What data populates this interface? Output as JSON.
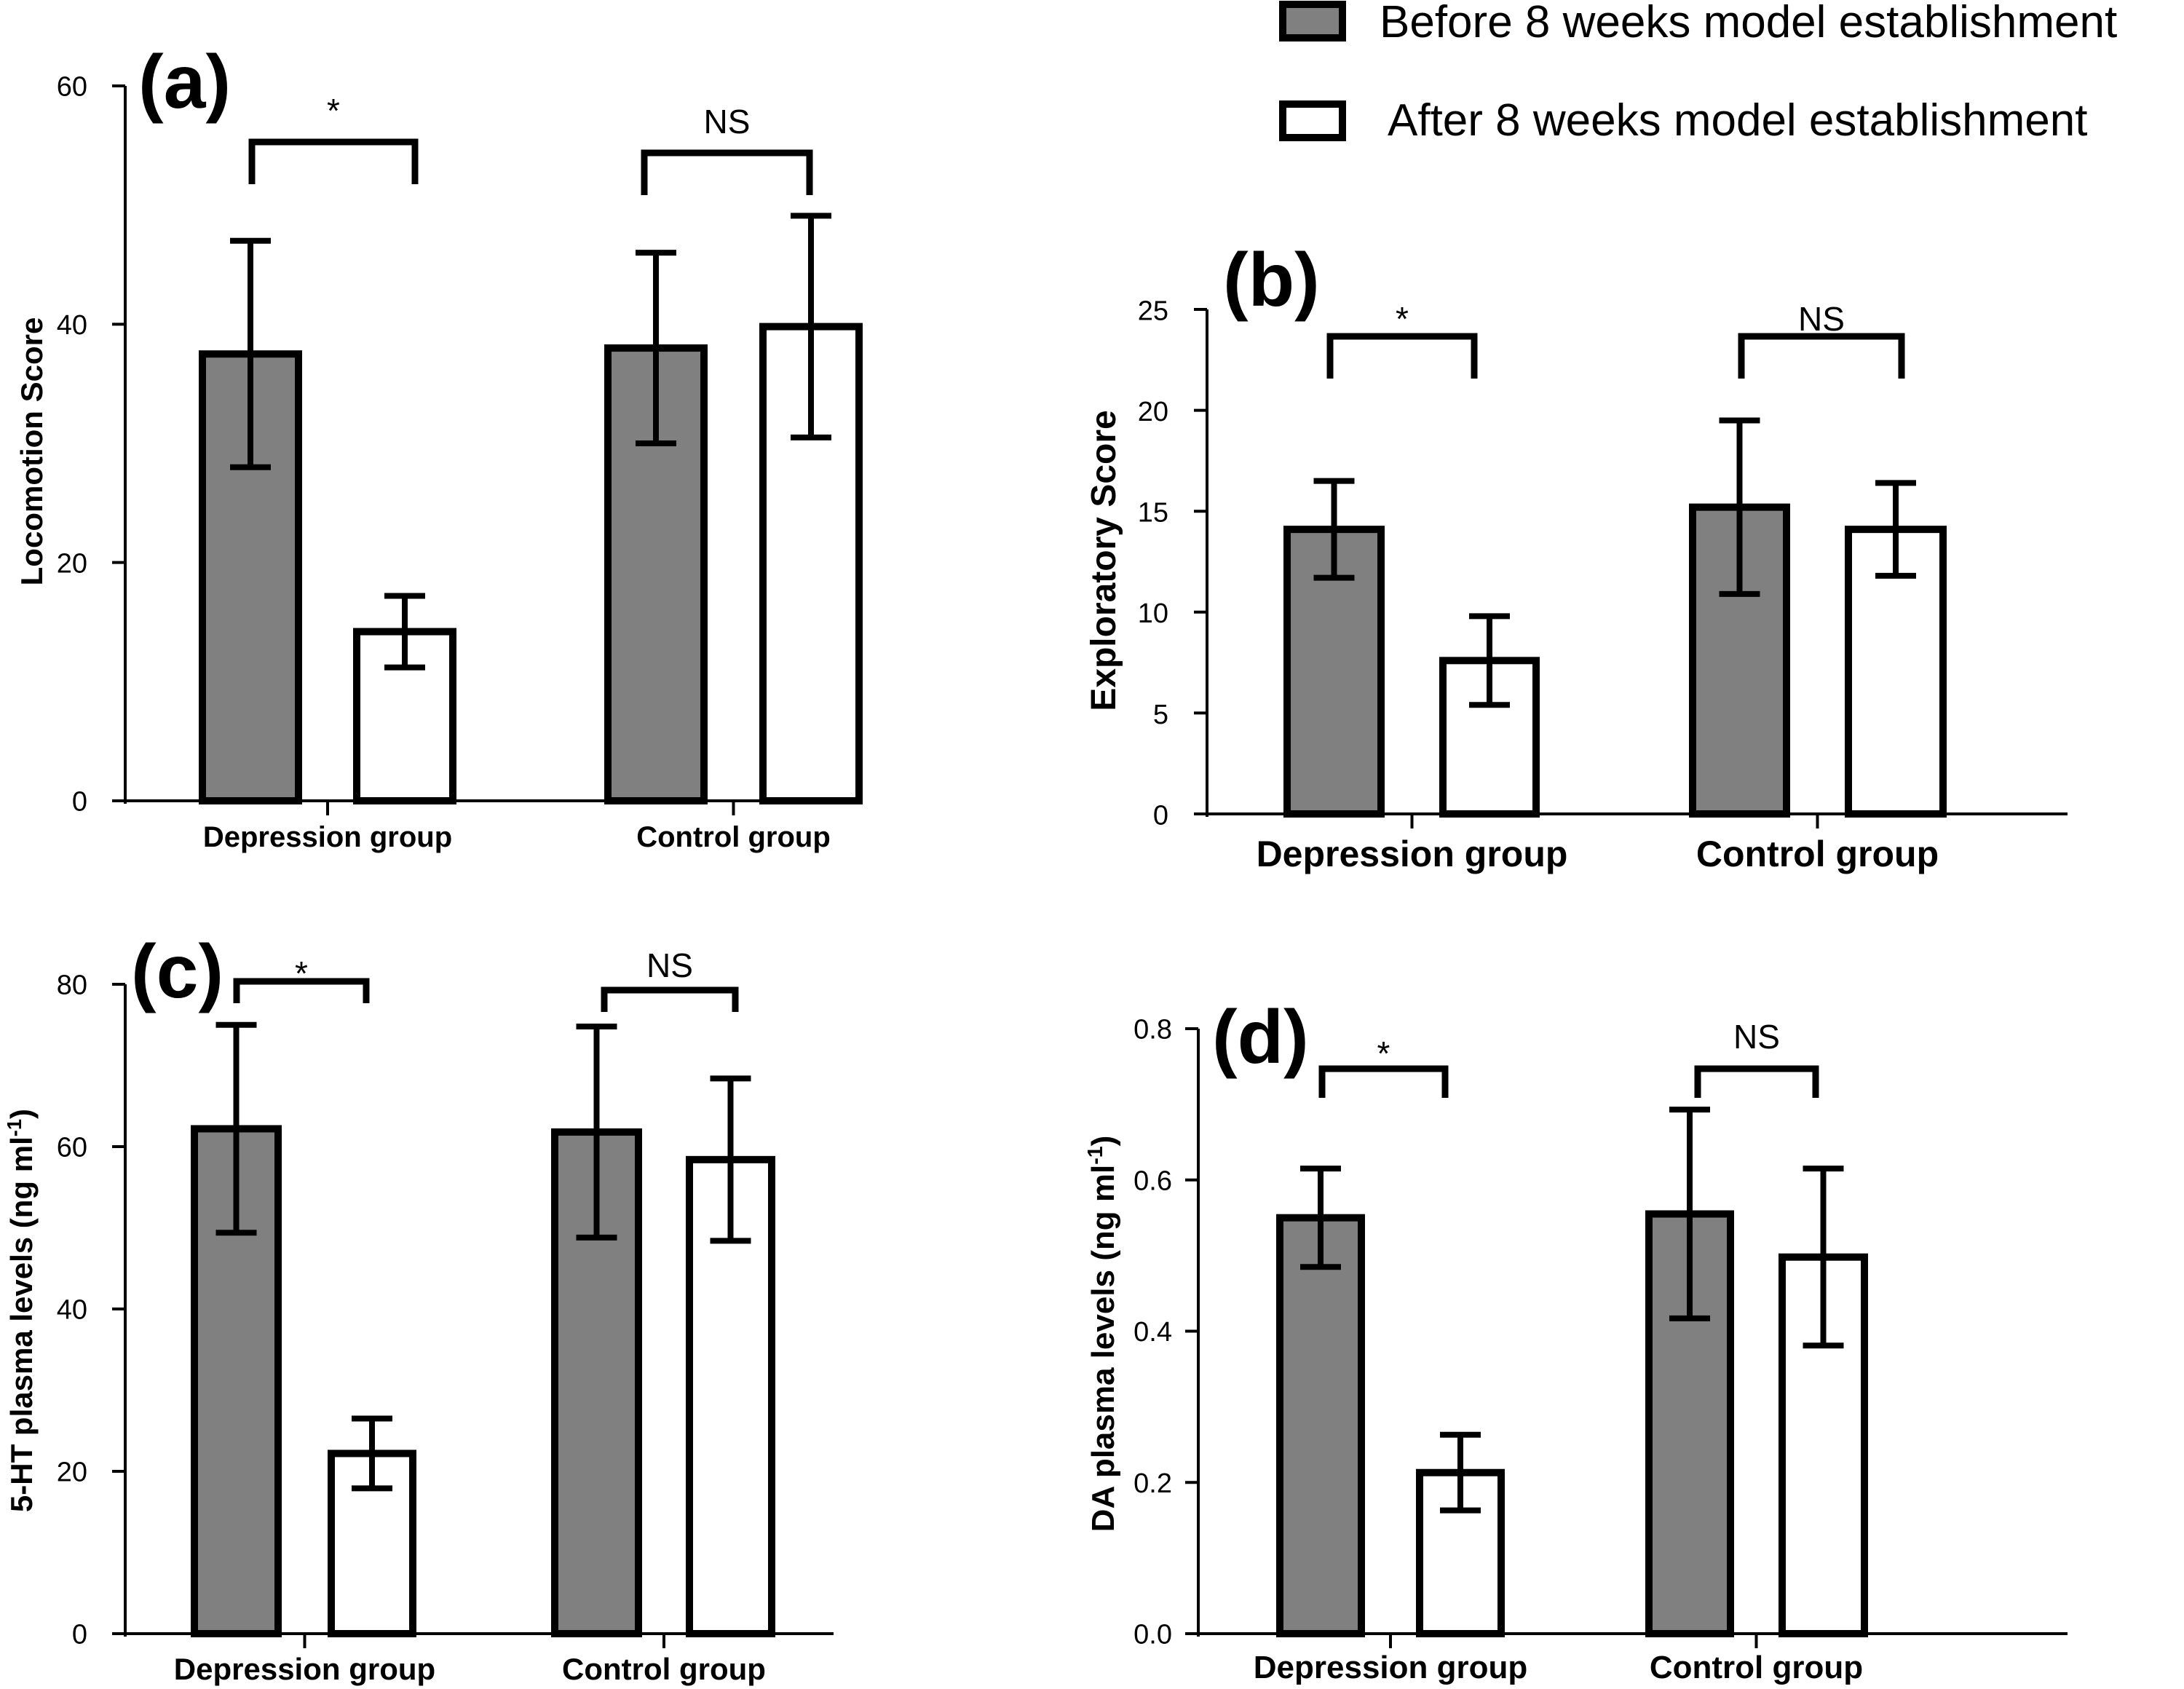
{
  "legend": {
    "items": [
      {
        "label": "Before 8 weeks model establishment",
        "color": "#808080"
      },
      {
        "label": "After 8 weeks model establishment",
        "color": "#ffffff"
      }
    ]
  },
  "colors": {
    "before": "#808080",
    "after": "#ffffff",
    "stroke": "#000000"
  },
  "chart_data": [
    {
      "type": "bar",
      "panel": "(a)",
      "ylabel": "Locomotion Score",
      "ylim": [
        0,
        60
      ],
      "yticks": [
        0,
        20,
        40,
        60
      ],
      "categories": [
        "Depression group",
        "Control group"
      ],
      "series": [
        {
          "name": "Before 8 weeks model establishment",
          "values": [
            37.5,
            38.0
          ],
          "errors": [
            9.5,
            8.0
          ]
        },
        {
          "name": "After 8 weeks model establishment",
          "values": [
            14.2,
            39.8
          ],
          "errors": [
            3.0,
            9.3
          ]
        }
      ],
      "significance": [
        "*",
        "NS"
      ]
    },
    {
      "type": "bar",
      "panel": "(b)",
      "ylabel": "Exploratory Score",
      "ylim": [
        0,
        25
      ],
      "yticks": [
        0,
        5,
        10,
        15,
        20,
        25
      ],
      "categories": [
        "Depression group",
        "Control group"
      ],
      "series": [
        {
          "name": "Before 8 weeks model establishment",
          "values": [
            14.1,
            15.2
          ],
          "errors": [
            2.4,
            4.3
          ]
        },
        {
          "name": "After 8 weeks model establishment",
          "values": [
            7.6,
            14.1
          ],
          "errors": [
            2.2,
            2.3
          ]
        }
      ],
      "significance": [
        "*",
        "NS"
      ]
    },
    {
      "type": "bar",
      "panel": "(c)",
      "ylabel": "5-HT plasma levels (ng ml",
      "ylabel_sup": "-1",
      "ylabel_end": ")",
      "ylim": [
        0,
        80
      ],
      "yticks": [
        0,
        20,
        40,
        60,
        80
      ],
      "categories": [
        "Depression group",
        "Control group"
      ],
      "series": [
        {
          "name": "Before 8 weeks model establishment",
          "values": [
            62.2,
            61.8
          ],
          "errors": [
            12.8,
            13.0
          ]
        },
        {
          "name": "After 8 weeks model establishment",
          "values": [
            22.2,
            58.4
          ],
          "errors": [
            4.3,
            10.0
          ]
        }
      ],
      "significance": [
        "*",
        "NS"
      ]
    },
    {
      "type": "bar",
      "panel": "(d)",
      "ylabel": "DA plasma levels (ng ml",
      "ylabel_sup": "-1",
      "ylabel_end": ")",
      "ylim": [
        0,
        0.8
      ],
      "yticks": [
        "0.0",
        "0.2",
        "0.4",
        "0.6",
        "0.8"
      ],
      "categories": [
        "Depression group",
        "Control group"
      ],
      "series": [
        {
          "name": "Before 8 weeks model establishment",
          "values": [
            0.55,
            0.555
          ],
          "errors": [
            0.065,
            0.138
          ]
        },
        {
          "name": "After 8 weeks model establishment",
          "values": [
            0.213,
            0.498
          ],
          "errors": [
            0.05,
            0.117
          ]
        }
      ],
      "significance": [
        "*",
        "NS"
      ]
    }
  ]
}
